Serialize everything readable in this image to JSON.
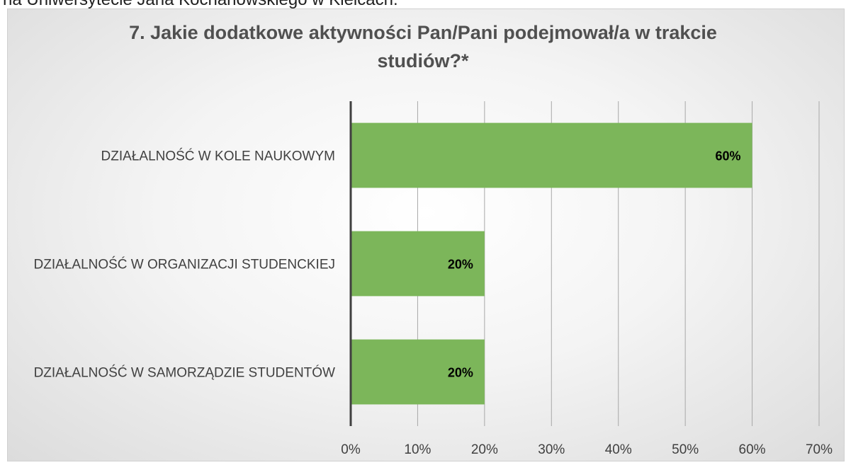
{
  "header_text": "na Uniwersytecie Jana Kochanowskiego w Kielcach.",
  "chart_data": {
    "type": "bar",
    "orientation": "horizontal",
    "title": "7. Jakie dodatkowe aktywności Pan/Pani podejmował/a w trakcie studiów?*",
    "title_lines": [
      "7. Jakie dodatkowe aktywności Pan/Pani podejmował/a w trakcie",
      "studiów?*"
    ],
    "categories": [
      "DZIAŁALNOŚĆ W KOLE NAUKOWYM",
      "DZIAŁALNOŚĆ W ORGANIZACJI STUDENCKIEJ",
      "DZIAŁALNOŚĆ W SAMORZĄDZIE STUDENTÓW"
    ],
    "values": [
      60,
      20,
      20
    ],
    "data_labels": [
      "60%",
      "20%",
      "20%"
    ],
    "xlim": [
      0,
      70
    ],
    "xticks": [
      "0%",
      "10%",
      "20%",
      "30%",
      "40%",
      "50%",
      "60%",
      "70%"
    ],
    "grid": true,
    "bar_color": "#7cb65a",
    "xlabel": "",
    "ylabel": ""
  }
}
